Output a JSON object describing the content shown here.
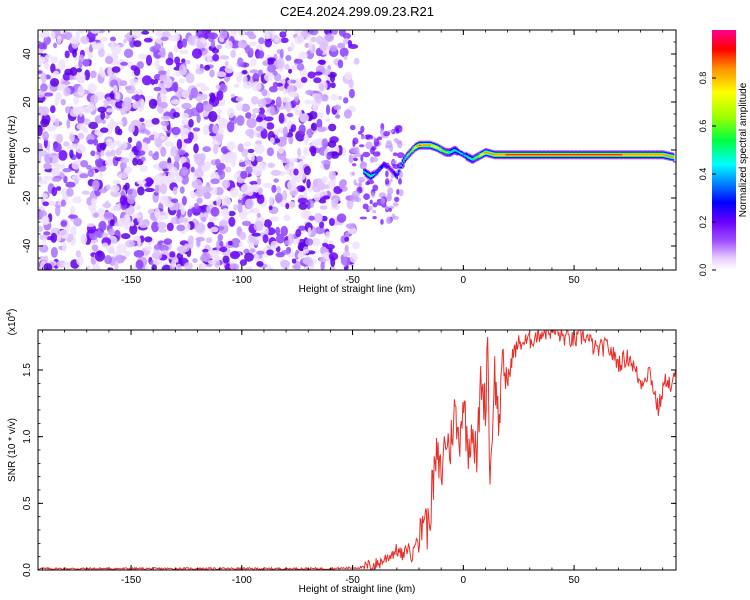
{
  "title": "C2E4.2024.299.09.23.R21",
  "colors": {
    "snr_line": "#e8302a",
    "spectrogram_noise": "#7a2ee0",
    "colormap": [
      "#ffffff",
      "#d7b4ff",
      "#a050ff",
      "#6a00ff",
      "#0000ff",
      "#00a0ff",
      "#00ffff",
      "#00ff60",
      "#a0ff00",
      "#ffff00",
      "#ff9000",
      "#ff0000",
      "#ff0080"
    ]
  },
  "chart_data": [
    {
      "type": "heatmap",
      "xlabel": "Height of straight line (km)",
      "ylabel": "Frequency (Hz)",
      "xlim": [
        -192,
        96
      ],
      "ylim": [
        -50,
        50
      ],
      "xticks": [
        -150,
        -100,
        -50,
        0,
        50
      ],
      "yticks": [
        -40,
        -20,
        0,
        20,
        40
      ],
      "noise_region_x": [
        -192,
        -52
      ],
      "signal_ridge": {
        "x": [
          -45,
          -42,
          -40,
          -38,
          -36,
          -34,
          -32,
          -30,
          -28,
          -26,
          -24,
          -22,
          -20,
          -18,
          -15,
          -12,
          -10,
          -8,
          -6,
          -4,
          -2,
          0,
          2,
          4,
          6,
          8,
          10,
          14,
          20,
          30,
          40,
          50,
          60,
          70,
          80,
          90,
          95
        ],
        "frequency": [
          -9,
          -11,
          -10,
          -8,
          -6,
          -7,
          -9,
          -11,
          -6,
          -3,
          -1,
          1,
          2,
          2,
          2,
          1,
          0,
          -1,
          -1,
          0,
          -1,
          -2,
          -3,
          -4,
          -3,
          -2,
          -1,
          -2,
          -2,
          -2,
          -2,
          -2,
          -2,
          -2,
          -2,
          -2,
          -3
        ],
        "amplitude": [
          0.4,
          0.5,
          0.35,
          0.3,
          0.25,
          0.2,
          0.2,
          0.3,
          0.4,
          0.5,
          0.6,
          0.7,
          0.85,
          0.8,
          0.75,
          0.7,
          0.65,
          0.6,
          0.5,
          0.45,
          0.4,
          0.35,
          0.5,
          0.45,
          0.6,
          0.7,
          0.75,
          0.8,
          0.85,
          0.9,
          0.92,
          0.92,
          0.88,
          0.85,
          0.8,
          0.8,
          0.75
        ]
      },
      "colorbar": {
        "label": "Normalized spectral amplitude",
        "ticks": [
          "0.0",
          "0.2",
          "0.4",
          "0.6",
          "0.8"
        ],
        "tick_values": [
          0.0,
          0.2,
          0.4,
          0.6,
          0.8
        ],
        "range": [
          0,
          1
        ]
      }
    },
    {
      "type": "line",
      "xlabel": "Height of straight line (km)",
      "ylabel": "SNR (10 * v/v)",
      "y_multiplier": "(x10",
      "y_multiplier_exp": "4",
      "y_multiplier_close": ")",
      "xlim": [
        -192,
        96
      ],
      "ylim": [
        0,
        1.8
      ],
      "xticks": [
        -150,
        -100,
        -50,
        0,
        50
      ],
      "yticks": [
        "0.0",
        "0.5",
        "1.0",
        "1.5"
      ],
      "ytick_values": [
        0.0,
        0.5,
        1.0,
        1.5
      ],
      "series": [
        {
          "x": [
            -192,
            -150,
            -100,
            -60,
            -45,
            -38,
            -34,
            -30,
            -27,
            -25,
            -23,
            -21,
            -20,
            -18,
            -16,
            -14,
            -12,
            -10,
            -8,
            -6,
            -4,
            -2,
            0,
            2,
            4,
            6,
            8,
            10,
            11,
            12,
            14,
            16,
            18,
            20,
            22,
            25,
            30,
            35,
            40,
            45,
            50,
            55,
            60,
            65,
            70,
            75,
            80,
            84,
            88,
            90,
            92,
            94,
            96
          ],
          "y": [
            0.01,
            0.01,
            0.01,
            0.01,
            0.02,
            0.05,
            0.1,
            0.15,
            0.1,
            0.18,
            0.08,
            0.3,
            0.15,
            0.45,
            0.3,
            0.6,
            0.85,
            0.7,
            1.0,
            0.9,
            1.2,
            0.95,
            1.3,
            0.9,
            1.1,
            0.8,
            1.45,
            1.2,
            1.8,
            0.6,
            1.5,
            1.1,
            1.55,
            1.4,
            1.6,
            1.7,
            1.72,
            1.78,
            1.8,
            1.75,
            1.72,
            1.76,
            1.65,
            1.68,
            1.55,
            1.6,
            1.4,
            1.5,
            1.2,
            1.35,
            1.45,
            1.35,
            1.5
          ]
        }
      ]
    }
  ]
}
